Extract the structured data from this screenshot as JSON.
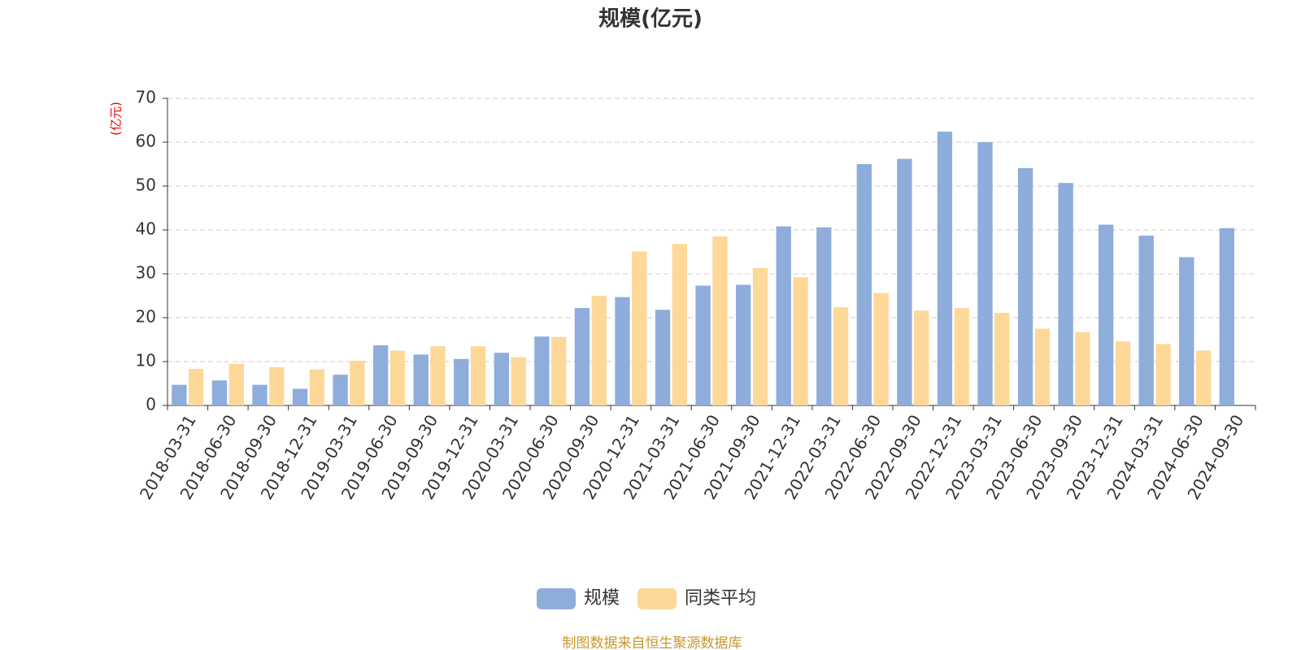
{
  "chart_data": {
    "type": "bar",
    "title": "规模(亿元)",
    "y_label": "(亿元)",
    "categories": [
      "2018-03-31",
      "2018-06-30",
      "2018-09-30",
      "2018-12-31",
      "2019-03-31",
      "2019-06-30",
      "2019-09-30",
      "2019-12-31",
      "2020-03-31",
      "2020-06-30",
      "2020-09-30",
      "2020-12-31",
      "2021-03-31",
      "2021-06-30",
      "2021-09-30",
      "2021-12-31",
      "2022-03-31",
      "2022-06-30",
      "2022-09-30",
      "2022-12-31",
      "2023-03-31",
      "2023-06-30",
      "2023-09-30",
      "2023-12-31",
      "2024-03-31",
      "2024-06-30",
      "2024-09-30"
    ],
    "series": [
      {
        "name": "规模",
        "color": "#8eaddb",
        "values": [
          4.7,
          5.7,
          4.7,
          3.8,
          7.0,
          13.7,
          11.6,
          10.6,
          12.0,
          15.7,
          22.2,
          24.7,
          21.8,
          27.3,
          27.5,
          40.8,
          40.6,
          55.0,
          56.2,
          62.4,
          60.0,
          54.1,
          50.7,
          41.2,
          38.7,
          33.8,
          40.4
        ]
      },
      {
        "name": "同类平均",
        "color": "#fdd899",
        "values": [
          8.3,
          9.5,
          8.7,
          8.2,
          10.2,
          12.5,
          13.5,
          13.5,
          11.0,
          15.6,
          25.0,
          35.1,
          36.8,
          38.5,
          31.3,
          29.2,
          22.4,
          25.6,
          21.6,
          22.2,
          21.1,
          17.5,
          16.7,
          14.6,
          14.0,
          12.5,
          null
        ]
      }
    ],
    "ylim": [
      0,
      70
    ],
    "yticks": [
      0,
      10,
      20,
      30,
      40,
      50,
      60,
      70
    ],
    "grid": true,
    "legend": "bottom",
    "source": "制图数据来自恒生聚源数据库"
  }
}
